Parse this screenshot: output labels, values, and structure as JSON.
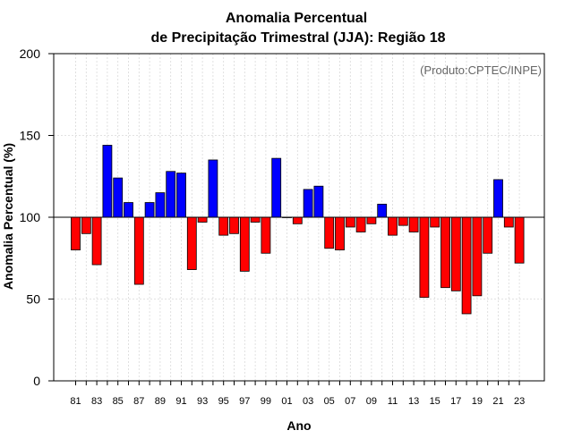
{
  "chart_data": {
    "type": "bar",
    "title_lines": [
      "Anomalia Percentual",
      "de Precipitação Trimestral (JJA): Região 18"
    ],
    "xlabel": "Ano",
    "ylabel": "Anomalia Percentual (%)",
    "annotation": "(Produto:CPTEC/INPE)",
    "ylim": [
      0,
      200
    ],
    "yticks": [
      0,
      50,
      100,
      150,
      200
    ],
    "baseline": 100,
    "grid": true,
    "categories": [
      "1981",
      "1982",
      "1983",
      "1984",
      "1985",
      "1986",
      "1987",
      "1988",
      "1989",
      "1990",
      "1991",
      "1992",
      "1993",
      "1994",
      "1995",
      "1996",
      "1997",
      "1998",
      "1999",
      "2000",
      "2001",
      "2002",
      "2003",
      "2004",
      "2005",
      "2006",
      "2007",
      "2008",
      "2009",
      "2010",
      "2011",
      "2012",
      "2013",
      "2014",
      "2015",
      "2016",
      "2017",
      "2018",
      "2019",
      "2020",
      "2021",
      "2022",
      "2023"
    ],
    "xtick_labels": [
      "81",
      "83",
      "85",
      "87",
      "89",
      "91",
      "93",
      "95",
      "97",
      "99",
      "01",
      "03",
      "05",
      "07",
      "09",
      "11",
      "13",
      "15",
      "17",
      "19",
      "21",
      "23"
    ],
    "values": [
      80,
      90,
      71,
      144,
      124,
      109,
      59,
      109,
      115,
      128,
      127,
      68,
      97,
      135,
      89,
      90,
      67,
      97,
      78,
      136,
      100,
      96,
      117,
      119,
      81,
      80,
      94,
      91,
      96,
      108,
      89,
      95,
      91,
      51,
      94,
      57,
      55,
      41,
      52,
      78,
      123,
      94,
      72
    ],
    "colors": {
      "above": "#0000ff",
      "below": "#ff0000",
      "edge": "#000000",
      "grid": "#d9d9d9",
      "axis": "#000000"
    }
  }
}
